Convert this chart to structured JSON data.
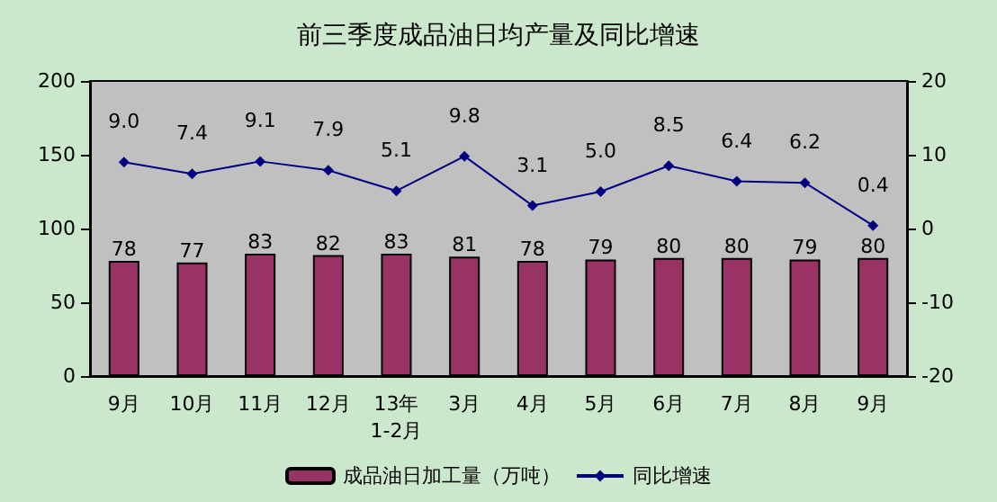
{
  "chart_data": {
    "type": "bar",
    "title": "前三季度成品油日均产量及同比增速",
    "categories": [
      "9月",
      "10月",
      "11月",
      "12月",
      "13年\n1-2月",
      "3月",
      "4月",
      "5月",
      "6月",
      "7月",
      "8月",
      "9月"
    ],
    "series": [
      {
        "name": "成品油日加工量（万吨）",
        "color": "#993366",
        "values": [
          78,
          77,
          83,
          82,
          83,
          81,
          78,
          79,
          80,
          80,
          79,
          80
        ]
      },
      {
        "name": "同比增速",
        "type": "line",
        "axis": "y2",
        "color": "#000080",
        "marker": "diamond",
        "values": [
          9.0,
          7.4,
          9.1,
          7.9,
          5.1,
          9.8,
          3.1,
          5.0,
          8.5,
          6.4,
          6.2,
          0.4
        ],
        "value_labels": [
          "9.0",
          "7.4",
          "9.1",
          "7.9",
          "5.1",
          "9.8",
          "3.1",
          "5.0",
          "8.5",
          "6.4",
          "6.2",
          "0.4"
        ]
      }
    ],
    "ylim": [
      0,
      200
    ],
    "yticks": [
      0,
      50,
      100,
      150,
      200
    ],
    "y2lim": [
      -20,
      20
    ],
    "y2ticks": [
      -20,
      -10,
      0,
      10,
      20
    ],
    "data_labels": true,
    "grid": false,
    "legend": "bottom"
  }
}
